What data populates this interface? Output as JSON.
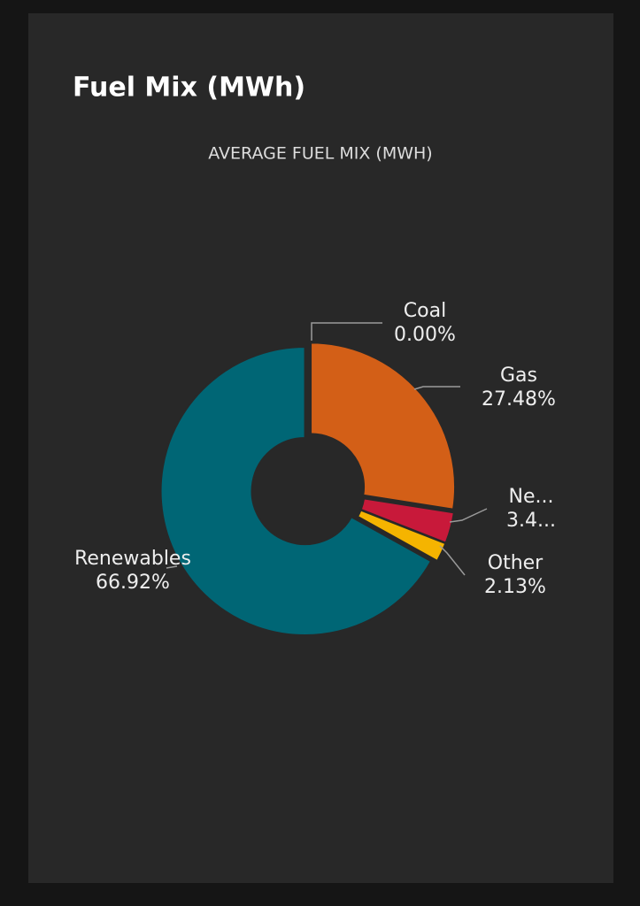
{
  "chart_data": {
    "type": "pie",
    "title": "Fuel Mix (MWh)",
    "subtitle": "AVERAGE FUEL MIX (MWH)",
    "categories": [
      "Coal",
      "Gas",
      "Ne...",
      "Other",
      "Renewables"
    ],
    "values": [
      0,
      27.48,
      3.47,
      2.13,
      66.92
    ],
    "value_labels": [
      "0.00%",
      "27.48%",
      "3.4...",
      "2.13%",
      "66.92%"
    ],
    "colors": [
      "#8a8a8a",
      "#d35f17",
      "#c8193a",
      "#f5b400",
      "#006675"
    ]
  }
}
